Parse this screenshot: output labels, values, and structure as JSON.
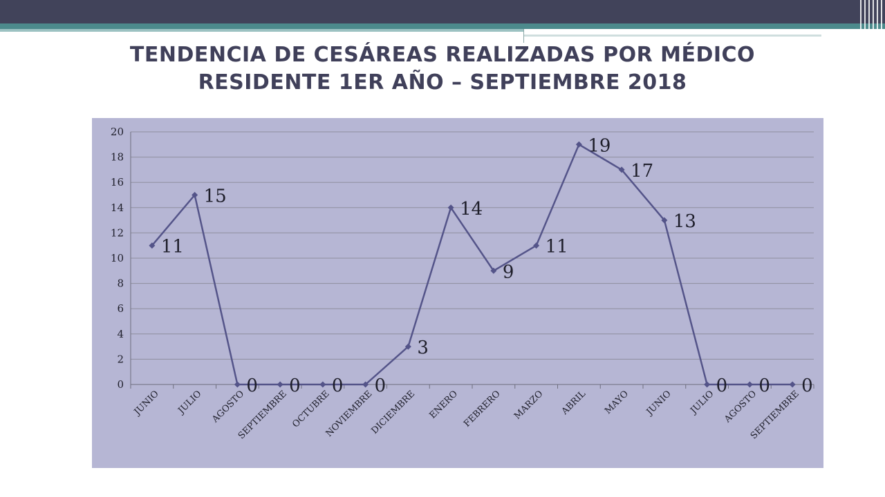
{
  "title_line1": "TENDENCIA DE CESÁREAS REALIZADAS POR MÉDICO",
  "title_line2": "RESIDENTE 1ER AÑO – SEPTIEMBRE 2018",
  "colors": {
    "header_dark": "#41435a",
    "header_teal": "#4c8a8c",
    "plot_background": "#b6b6d4",
    "series_line": "#545489",
    "gridline": "#8e8e9e",
    "title_text": "#40405a"
  },
  "chart_data": {
    "type": "line",
    "categories": [
      "JUNIO",
      "JULIO",
      "AGOSTO",
      "SEPTIEMBRE",
      "OCTUBRE",
      "NOVIEMBRE",
      "DICIEMBRE",
      "ENERO",
      "FEBRERO",
      "MARZO",
      "ABRIL",
      "MAYO",
      "JUNIO",
      "JULIO",
      "AGOSTO",
      "SEPTIEMBRE"
    ],
    "series": [
      {
        "values": [
          11,
          15,
          0,
          0,
          0,
          0,
          3,
          14,
          9,
          11,
          19,
          17,
          13,
          0,
          0,
          0
        ]
      }
    ],
    "ylim": [
      0,
      20
    ],
    "yticks": [
      0,
      2,
      4,
      6,
      8,
      10,
      12,
      14,
      16,
      18,
      20
    ],
    "grid": true,
    "legend": "none",
    "data_labels": true,
    "marker": "diamond"
  }
}
